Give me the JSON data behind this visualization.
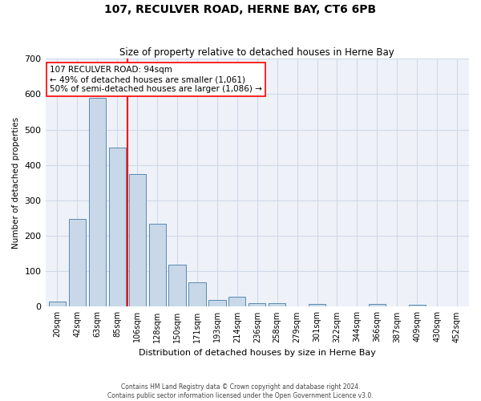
{
  "title": "107, RECULVER ROAD, HERNE BAY, CT6 6PB",
  "subtitle": "Size of property relative to detached houses in Herne Bay",
  "xlabel": "Distribution of detached houses by size in Herne Bay",
  "ylabel": "Number of detached properties",
  "categories": [
    "20sqm",
    "42sqm",
    "63sqm",
    "85sqm",
    "106sqm",
    "128sqm",
    "150sqm",
    "171sqm",
    "193sqm",
    "214sqm",
    "236sqm",
    "258sqm",
    "279sqm",
    "301sqm",
    "322sqm",
    "344sqm",
    "366sqm",
    "387sqm",
    "409sqm",
    "430sqm",
    "452sqm"
  ],
  "values": [
    15,
    248,
    590,
    450,
    375,
    235,
    118,
    68,
    18,
    28,
    10,
    10,
    0,
    7,
    0,
    0,
    8,
    0,
    6,
    0,
    0
  ],
  "bar_color": "#c8d8e8",
  "bar_edge_color": "#5a8ab0",
  "grid_color": "#d0d8e8",
  "background_color": "#eef2f8",
  "vline_x": 3.5,
  "vline_color": "red",
  "annotation_text": "107 RECULVER ROAD: 94sqm\n← 49% of detached houses are smaller (1,061)\n50% of semi-detached houses are larger (1,086) →",
  "annotation_box_color": "white",
  "annotation_box_edge": "red",
  "ylim": [
    0,
    700
  ],
  "yticks": [
    0,
    100,
    200,
    300,
    400,
    500,
    600,
    700
  ],
  "footer1": "Contains HM Land Registry data © Crown copyright and database right 2024.",
  "footer2": "Contains public sector information licensed under the Open Government Licence v3.0."
}
